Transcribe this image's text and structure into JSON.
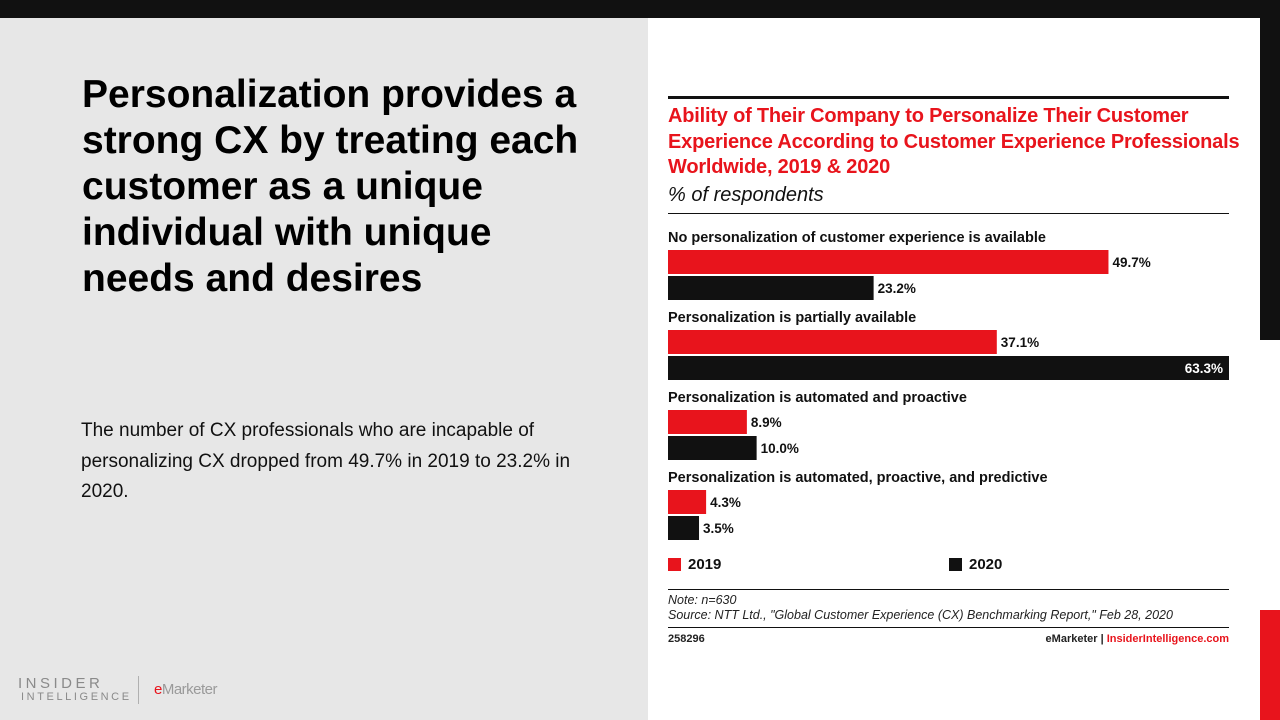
{
  "slide": {
    "headline": "Personalization provides a strong CX by treating each customer as a unique individual with unique needs and desires",
    "body": "The number of CX professionals who are incapable of personalizing CX dropped from 49.7% in 2019 to 23.2% in 2020."
  },
  "branding": {
    "insider": "INSIDER",
    "intelligence": "INTELLIGENCE",
    "emarketer_e": "e",
    "emarketer_rest": "Marketer"
  },
  "chart_data": {
    "type": "bar",
    "orientation": "horizontal",
    "title": "Ability of Their Company to Personalize Their Customer Experience According to Customer Experience Professionals Worldwide, 2019 & 2020",
    "subtitle": "% of respondents",
    "categories": [
      "No personalization of customer experience is available",
      "Personalization is partially available",
      "Personalization is automated and proactive",
      "Personalization is automated, proactive, and predictive"
    ],
    "series": [
      {
        "name": "2019",
        "color": "#e8141c",
        "values": [
          49.7,
          37.1,
          8.9,
          4.3
        ],
        "labels": [
          "49.7%",
          "37.1%",
          "8.9%",
          "4.3%"
        ]
      },
      {
        "name": "2020",
        "color": "#111111",
        "values": [
          23.2,
          63.3,
          10.0,
          3.5
        ],
        "labels": [
          "23.2%",
          "63.3%",
          "10.0%",
          "3.5%"
        ]
      }
    ],
    "xlim": [
      0,
      63.3
    ],
    "legend": "bottom",
    "note": "Note: n=630",
    "source": "Source: NTT Ltd., \"Global Customer Experience (CX) Benchmarking Report,\" Feb 28, 2020",
    "chart_id": "258296",
    "credit_left": "eMarketer",
    "credit_sep": "|",
    "credit_right": "InsiderIntelligence.com"
  }
}
